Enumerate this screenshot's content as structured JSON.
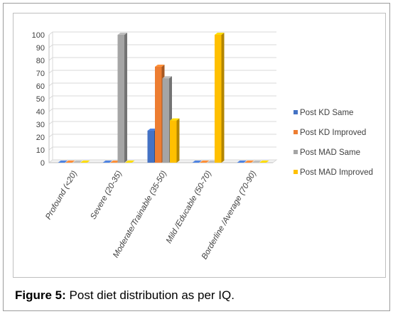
{
  "caption": {
    "label": "Figure 5:",
    "text": "Post diet distribution as per IQ."
  },
  "chart_data": {
    "type": "bar",
    "style": "3d-clustered",
    "title": "",
    "xlabel": "",
    "ylabel": "",
    "ylim": [
      0,
      100
    ],
    "ytick_step": 10,
    "grid": true,
    "legend_position": "right",
    "categories": [
      "Profound (<20)",
      "Severe (20-35)",
      "Moderate/Trainable (35-50)",
      "Mild /Educable (50-70)",
      "Borderline /Average (70-90)"
    ],
    "series": [
      {
        "name": "Post KD Same",
        "color": "#4472C4",
        "values": [
          0,
          0,
          25,
          0,
          0
        ]
      },
      {
        "name": "Post KD Improved",
        "color": "#ED7D31",
        "values": [
          0,
          0,
          75,
          0,
          0
        ]
      },
      {
        "name": "Post MAD Same",
        "color": "#A5A5A5",
        "values": [
          0,
          100,
          66,
          0,
          0
        ]
      },
      {
        "name": "Post MAD Improved",
        "color": "#FFC000",
        "values": [
          0,
          0,
          33,
          100,
          0
        ]
      }
    ]
  }
}
